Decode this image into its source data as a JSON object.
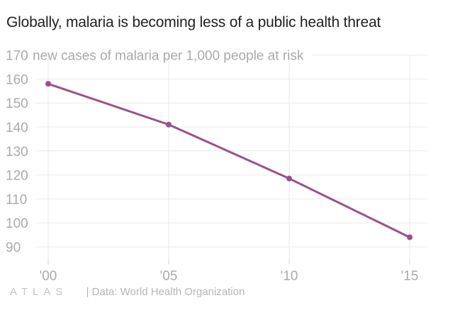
{
  "title": "Globally, malaria is becoming less of a public health threat",
  "footer": {
    "logo": "ATLAS",
    "source": "| Data: World Health Organization"
  },
  "colors": {
    "line": "#9c4f8c",
    "grid": "#e9e9e9",
    "tick_text": "#aaaaaa"
  },
  "chart_data": {
    "type": "line",
    "title": "Globally, malaria is becoming less of a public health threat",
    "ylabel": "new cases of malaria per 1,000 people at risk",
    "xlabel": "",
    "x": [
      "'00",
      "'05",
      "'10",
      "'15"
    ],
    "x_values": [
      2000,
      2005,
      2010,
      2015
    ],
    "series": [
      {
        "values": [
          158,
          141,
          118.5,
          94
        ]
      }
    ],
    "yticks": [
      90,
      100,
      110,
      120,
      130,
      140,
      150,
      160,
      170
    ],
    "ylim": [
      85,
      170
    ],
    "grid": true,
    "legend": "none"
  }
}
